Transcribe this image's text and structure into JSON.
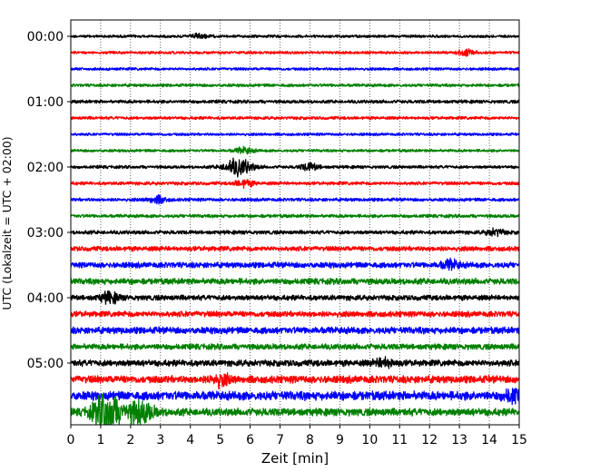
{
  "chart_data": {
    "type": "line",
    "title": "",
    "xlabel": "Zeit  [min]",
    "ylabel": "UTC (Lokalzeit = UTC + 02:00)",
    "xlim": [
      0,
      15
    ],
    "x_ticks": [
      "0",
      "1",
      "2",
      "3",
      "4",
      "5",
      "6",
      "7",
      "8",
      "9",
      "10",
      "11",
      "12",
      "13",
      "14",
      "15"
    ],
    "y_ticks": [
      "00:00",
      "01:00",
      "02:00",
      "03:00",
      "04:00",
      "05:00"
    ],
    "grid": "vertical dotted lines at every minute",
    "trace_interval_minutes": 15,
    "trace_colors": [
      "#000000",
      "#ff0000",
      "#0000ff",
      "#008000"
    ],
    "series": [
      {
        "start": "00:00",
        "color": "#000000",
        "amplitude": 0.18,
        "events": [
          {
            "minute": 4.3,
            "amplitude": 0.25
          }
        ]
      },
      {
        "start": "00:15",
        "color": "#ff0000",
        "amplitude": 0.18,
        "events": [
          {
            "minute": 13.2,
            "amplitude": 0.35
          }
        ]
      },
      {
        "start": "00:30",
        "color": "#0000ff",
        "amplitude": 0.18,
        "events": []
      },
      {
        "start": "00:45",
        "color": "#008000",
        "amplitude": 0.2,
        "events": []
      },
      {
        "start": "01:00",
        "color": "#000000",
        "amplitude": 0.22,
        "events": []
      },
      {
        "start": "01:15",
        "color": "#ff0000",
        "amplitude": 0.2,
        "events": []
      },
      {
        "start": "01:30",
        "color": "#0000ff",
        "amplitude": 0.18,
        "events": []
      },
      {
        "start": "01:45",
        "color": "#008000",
        "amplitude": 0.18,
        "events": [
          {
            "minute": 5.8,
            "amplitude": 0.4
          }
        ]
      },
      {
        "start": "02:00",
        "color": "#000000",
        "amplitude": 0.2,
        "events": [
          {
            "minute": 5.6,
            "amplitude": 1.1
          },
          {
            "minute": 8.0,
            "amplitude": 0.45
          }
        ]
      },
      {
        "start": "02:15",
        "color": "#ff0000",
        "amplitude": 0.22,
        "events": [
          {
            "minute": 5.8,
            "amplitude": 0.45
          }
        ]
      },
      {
        "start": "02:30",
        "color": "#0000ff",
        "amplitude": 0.22,
        "events": [
          {
            "minute": 2.9,
            "amplitude": 0.45
          }
        ]
      },
      {
        "start": "02:45",
        "color": "#008000",
        "amplitude": 0.22,
        "events": []
      },
      {
        "start": "03:00",
        "color": "#000000",
        "amplitude": 0.25,
        "events": [
          {
            "minute": 14.2,
            "amplitude": 0.4
          }
        ]
      },
      {
        "start": "03:15",
        "color": "#ff0000",
        "amplitude": 0.32,
        "events": []
      },
      {
        "start": "03:30",
        "color": "#0000ff",
        "amplitude": 0.38,
        "events": [
          {
            "minute": 12.7,
            "amplitude": 0.55
          }
        ]
      },
      {
        "start": "03:45",
        "color": "#008000",
        "amplitude": 0.4,
        "events": []
      },
      {
        "start": "04:00",
        "color": "#000000",
        "amplitude": 0.35,
        "events": [
          {
            "minute": 1.3,
            "amplitude": 0.65
          }
        ]
      },
      {
        "start": "04:15",
        "color": "#ff0000",
        "amplitude": 0.38,
        "events": []
      },
      {
        "start": "04:30",
        "color": "#0000ff",
        "amplitude": 0.45,
        "events": []
      },
      {
        "start": "04:45",
        "color": "#008000",
        "amplitude": 0.38,
        "events": []
      },
      {
        "start": "05:00",
        "color": "#000000",
        "amplitude": 0.42,
        "events": [
          {
            "minute": 10.5,
            "amplitude": 0.55
          }
        ]
      },
      {
        "start": "05:15",
        "color": "#ff0000",
        "amplitude": 0.5,
        "events": [
          {
            "minute": 5.0,
            "amplitude": 0.7
          }
        ]
      },
      {
        "start": "05:30",
        "color": "#0000ff",
        "amplitude": 0.6,
        "events": [
          {
            "minute": 14.8,
            "amplitude": 0.8
          }
        ]
      },
      {
        "start": "05:45",
        "color": "#008000",
        "amplitude": 0.5,
        "events": [
          {
            "minute": 1.2,
            "amplitude": 2.4
          },
          {
            "minute": 2.3,
            "amplitude": 1.4
          }
        ]
      }
    ]
  }
}
